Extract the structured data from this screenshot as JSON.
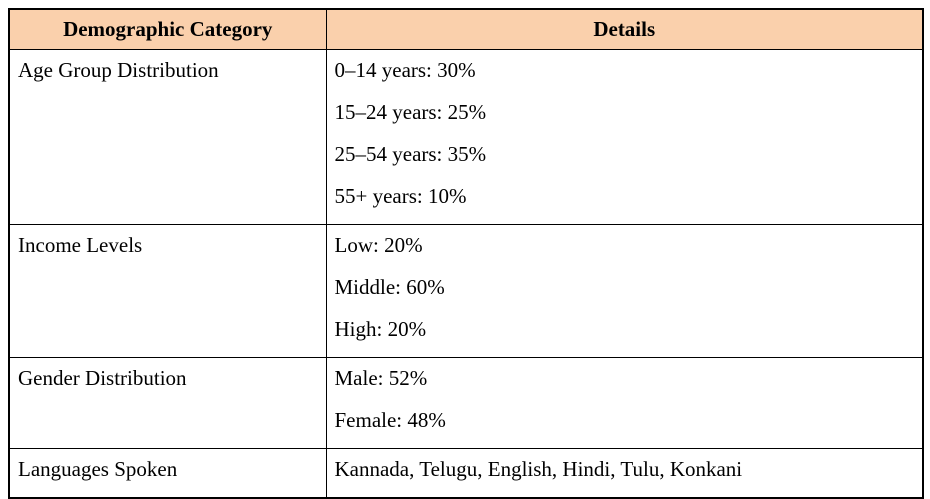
{
  "table": {
    "headers": [
      {
        "label": "Demographic Category"
      },
      {
        "label": "Details"
      }
    ],
    "rows": [
      {
        "category": "Age Group Distribution",
        "details": [
          "0–14 years: 30%",
          "15–24 years: 25%",
          "25–54 years: 35%",
          "55+ years: 10%"
        ]
      },
      {
        "category": "Income Levels",
        "details": [
          "Low: 20%",
          "Middle: 60%",
          "High: 20%"
        ]
      },
      {
        "category": "Gender Distribution",
        "details": [
          "Male: 52%",
          "Female: 48%"
        ]
      },
      {
        "category": "Languages Spoken",
        "details": [
          "Kannada, Telugu, English, Hindi, Tulu, Konkani"
        ]
      }
    ],
    "colors": {
      "header_bg": "#FAD0AC",
      "border": "#000000",
      "text": "#000000",
      "page_bg": "#FFFFFF"
    }
  }
}
